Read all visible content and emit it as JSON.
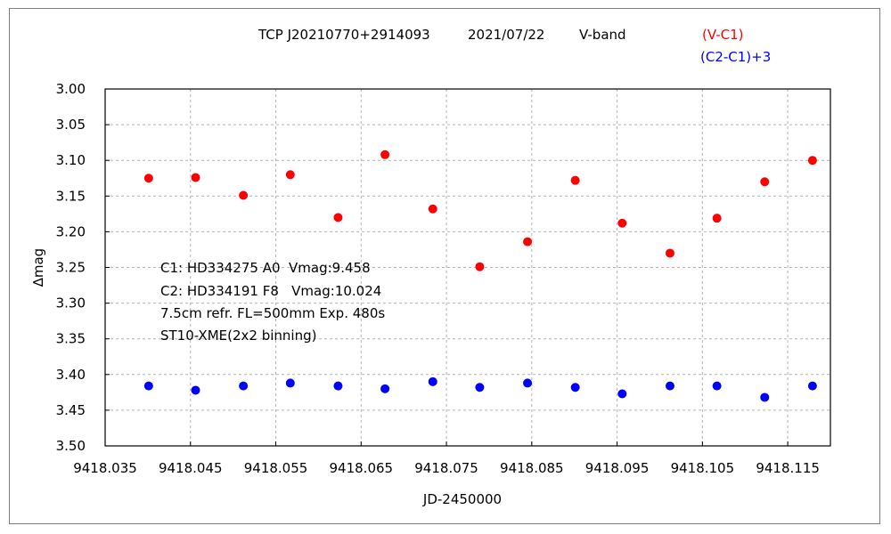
{
  "title": {
    "object": "TCP J20210770+2914093",
    "date": "2021/07/22",
    "band": "V-band"
  },
  "notes": [
    "C1: HD334275 A0  Vmag:9.458",
    "C2: HD334191 F8   Vmag:10.024",
    "7.5cm refr. FL=500mm Exp. 480s",
    "ST10-XME(2x2 binning)"
  ],
  "colors": {
    "series1": "#ff0000",
    "series2": "#0000ff"
  },
  "chart_data": {
    "type": "scatter",
    "xlabel": "JD-2450000",
    "ylabel": "∆mag",
    "xlim": [
      9418.035,
      9418.12
    ],
    "ylim": [
      3.0,
      3.5
    ],
    "y_inverted": true,
    "grid": true,
    "legend_position": "top-right",
    "x_ticks": [
      "9418.035",
      "9418.045",
      "9418.055",
      "9418.065",
      "9418.075",
      "9418.085",
      "9418.095",
      "9418.105",
      "9418.115"
    ],
    "y_ticks": [
      "3.00",
      "3.05",
      "3.10",
      "3.15",
      "3.20",
      "3.25",
      "3.30",
      "3.35",
      "3.40",
      "3.45",
      "3.50"
    ],
    "series": [
      {
        "name": "(V-C1)",
        "color": "#ff0000",
        "x": [
          9418.0401,
          9418.0456,
          9418.0512,
          9418.0567,
          9418.0623,
          9418.0678,
          9418.0734,
          9418.0789,
          9418.0845,
          9418.0901,
          9418.0956,
          9418.1012,
          9418.1067,
          9418.1123,
          9418.1179
        ],
        "y": [
          3.125,
          3.124,
          3.149,
          3.12,
          3.18,
          3.092,
          3.168,
          3.249,
          3.214,
          3.128,
          3.188,
          3.23,
          3.181,
          3.13,
          3.1
        ]
      },
      {
        "name": "(C2-C1)+3",
        "color": "#0000ff",
        "x": [
          9418.0401,
          9418.0456,
          9418.0512,
          9418.0567,
          9418.0623,
          9418.0678,
          9418.0734,
          9418.0789,
          9418.0845,
          9418.0901,
          9418.0956,
          9418.1012,
          9418.1067,
          9418.1123,
          9418.1179
        ],
        "y": [
          3.416,
          3.422,
          3.416,
          3.412,
          3.416,
          3.42,
          3.41,
          3.418,
          3.412,
          3.418,
          3.427,
          3.416,
          3.416,
          3.432,
          3.416
        ]
      }
    ]
  }
}
